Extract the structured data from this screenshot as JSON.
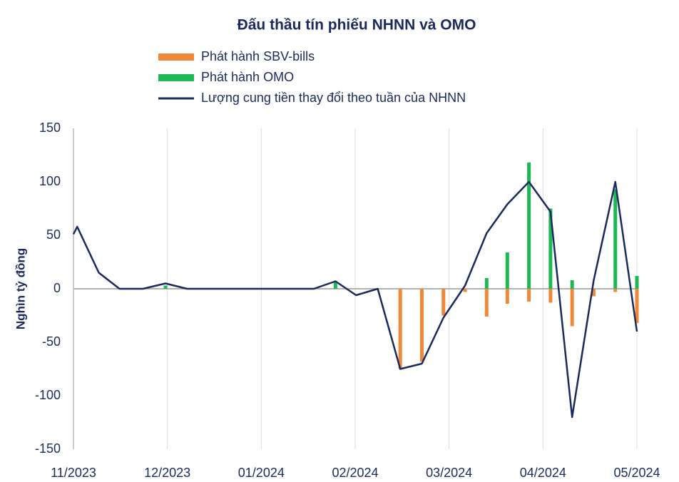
{
  "chart_data": {
    "type": "bar_line",
    "title": "Đấu thầu tín phiếu NHNN và OMO",
    "ylabel": "Nghìn tỷ đồng",
    "x": [
      0,
      0.04,
      0.27,
      0.49,
      0.74,
      0.98,
      1.21,
      1.44,
      1.67,
      1.9,
      2.12,
      2.35,
      2.56,
      2.79,
      3.01,
      3.24,
      3.48,
      3.71,
      3.94,
      4.17,
      4.4,
      4.62,
      4.85,
      5.08,
      5.31,
      5.54,
      5.77,
      6.0
    ],
    "series": [
      {
        "name": "Phát hành SBV-bills",
        "type": "bar",
        "color": "#f0883a",
        "values": [
          null,
          null,
          null,
          null,
          null,
          null,
          null,
          null,
          null,
          null,
          null,
          null,
          null,
          null,
          null,
          null,
          -75,
          -68,
          -25,
          -3,
          -26,
          -14,
          -12,
          -13,
          -35,
          -7,
          -3,
          -32
        ]
      },
      {
        "name": "Phát hành OMO",
        "type": "bar",
        "color": "#1db954",
        "values": [
          null,
          null,
          null,
          null,
          null,
          3,
          null,
          null,
          null,
          null,
          null,
          null,
          null,
          7,
          null,
          null,
          null,
          null,
          null,
          null,
          10,
          34,
          118,
          75,
          8,
          null,
          93,
          12
        ]
      },
      {
        "name": "Lượng cung tiền thay đổi theo tuần của NHNN",
        "type": "line",
        "color": "#1b2a5e",
        "values": [
          51,
          58,
          15,
          0,
          0,
          5,
          0,
          0,
          0,
          0,
          0,
          0,
          0,
          7,
          -6,
          0,
          -75,
          -70,
          -27,
          3,
          52,
          79,
          100,
          72,
          -120,
          8,
          100,
          -40
        ]
      }
    ],
    "xlim": [
      0,
      6
    ],
    "xticks": [
      {
        "value": 0,
        "label": "11/2023"
      },
      {
        "value": 1,
        "label": "12/2023"
      },
      {
        "value": 2,
        "label": "01/2024"
      },
      {
        "value": 3,
        "label": "02/2024"
      },
      {
        "value": 4,
        "label": "03/2024"
      },
      {
        "value": 5,
        "label": "04/2024"
      },
      {
        "value": 6,
        "label": "05/2024"
      }
    ],
    "ylim": [
      -150,
      150
    ],
    "yticks": [
      -150,
      -100,
      -50,
      0,
      50,
      100,
      150
    ],
    "grid": true
  }
}
